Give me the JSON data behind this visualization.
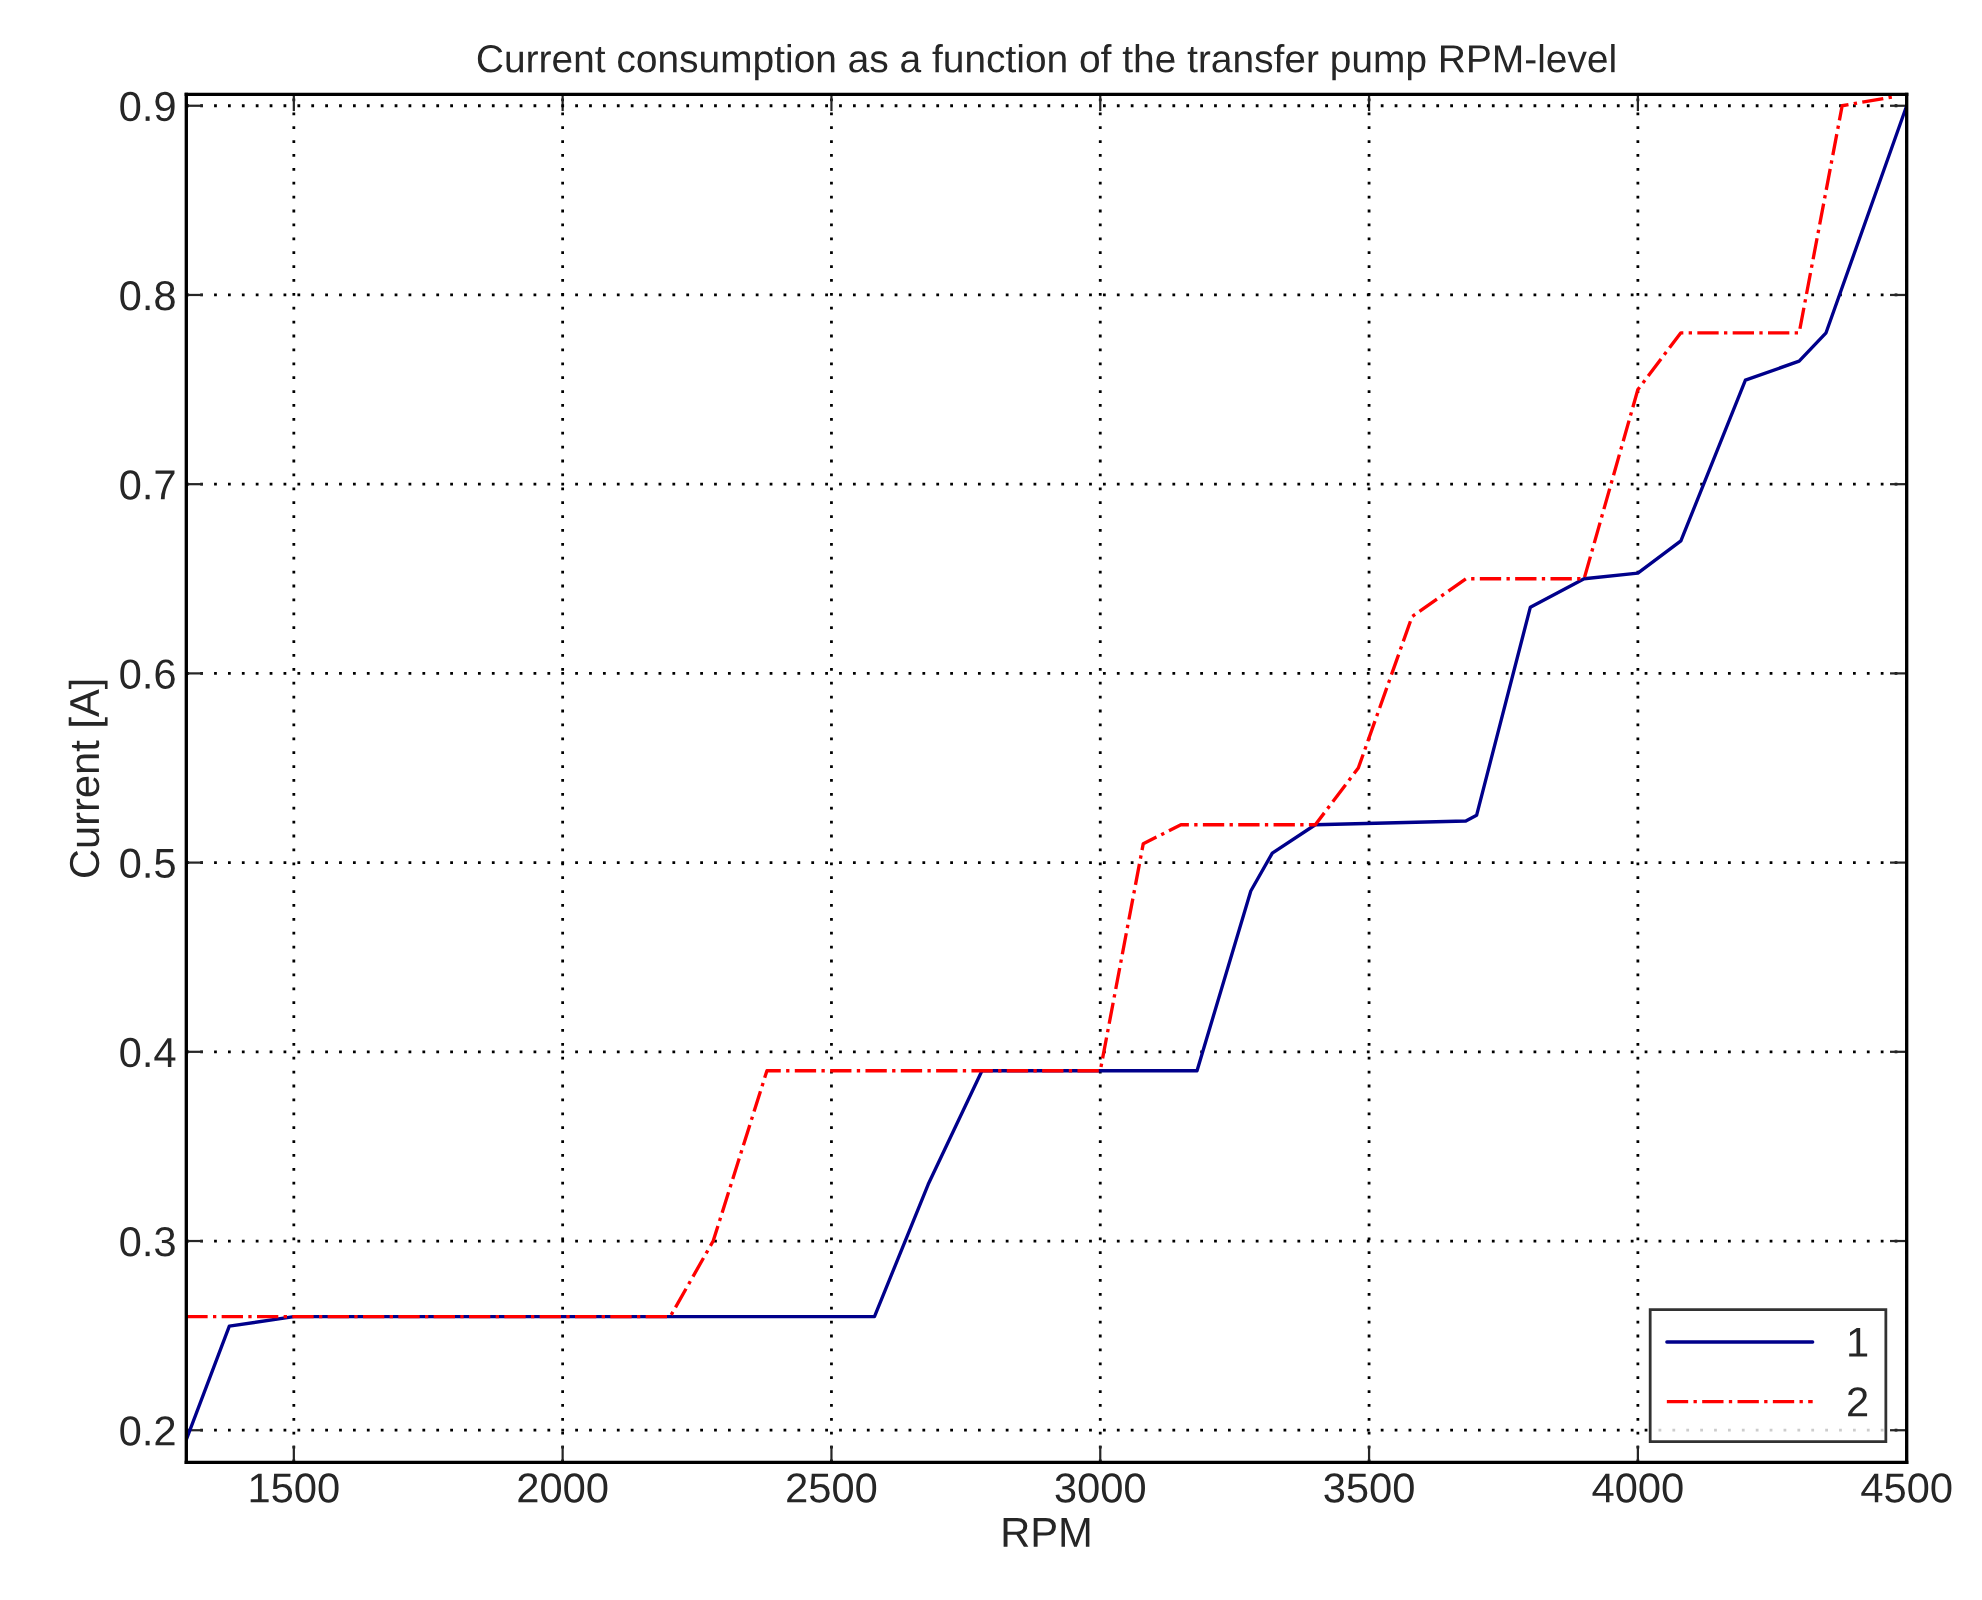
{
  "chart_data": {
    "type": "line",
    "title": "Current consumption as a function of the transfer pump RPM-level",
    "xlabel": "RPM",
    "ylabel": "Current [A]",
    "series": [
      {
        "name": "1",
        "color": "#00008b",
        "line_style": "solid",
        "x": [
          1300,
          1380,
          1500,
          2580,
          2680,
          2780,
          3180,
          3280,
          3320,
          3400,
          3680,
          3700,
          3800,
          3900,
          4000,
          4080,
          4200,
          4300,
          4350,
          4500
        ],
        "values": [
          0.195,
          0.255,
          0.26,
          0.26,
          0.33,
          0.39,
          0.39,
          0.485,
          0.505,
          0.52,
          0.522,
          0.525,
          0.635,
          0.65,
          0.653,
          0.67,
          0.755,
          0.765,
          0.78,
          0.9
        ]
      },
      {
        "name": "2",
        "color": "#ff0000",
        "line_style": "dashdot",
        "x": [
          1300,
          2200,
          2280,
          2380,
          3000,
          3080,
          3150,
          3400,
          3480,
          3580,
          3680,
          3900,
          4000,
          4080,
          4300,
          4380,
          4480
        ],
        "values": [
          0.26,
          0.26,
          0.3,
          0.39,
          0.39,
          0.51,
          0.52,
          0.52,
          0.55,
          0.63,
          0.65,
          0.65,
          0.75,
          0.78,
          0.78,
          0.9,
          0.905
        ]
      }
    ],
    "xlim": [
      1300,
      4500
    ],
    "xticks": [
      1500,
      2000,
      2500,
      3000,
      3500,
      4000,
      4500
    ],
    "ylim": [
      0.183,
      0.906
    ],
    "yticks": [
      0.2,
      0.3,
      0.4,
      0.5,
      0.6,
      0.7,
      0.8,
      0.9
    ],
    "grid": true,
    "legend": "bottom right"
  }
}
